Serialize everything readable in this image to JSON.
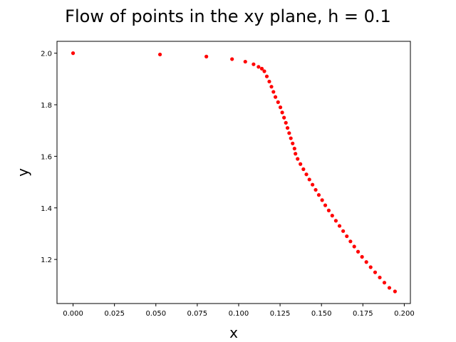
{
  "chart_data": {
    "type": "scatter",
    "title": "Flow of points in the xy plane, h = 0.1",
    "x_label": "x",
    "y_label": "y",
    "color": "#ff0000",
    "x": [
      0,
      0.0525,
      0.0805,
      0.096,
      0.104,
      0.109,
      0.112,
      0.114,
      0.1155,
      0.117,
      0.1185,
      0.1198,
      0.121,
      0.1222,
      0.1238,
      0.1252,
      0.1263,
      0.1274,
      0.1285,
      0.1295,
      0.1305,
      0.1315,
      0.1326,
      0.1337,
      0.1343,
      0.1356,
      0.1373,
      0.1391,
      0.1409,
      0.1427,
      0.1446,
      0.1465,
      0.1484,
      0.1504,
      0.1523,
      0.1544,
      0.1565,
      0.1587,
      0.1609,
      0.1631,
      0.1653,
      0.1675,
      0.1698,
      0.1721,
      0.1745,
      0.1771,
      0.1797,
      0.1824,
      0.1852,
      0.188,
      0.191,
      0.1944
    ],
    "values": [
      2.0,
      1.995,
      1.987,
      1.977,
      1.967,
      1.957,
      1.947,
      1.94,
      1.93,
      1.91,
      1.89,
      1.87,
      1.85,
      1.83,
      1.81,
      1.79,
      1.77,
      1.75,
      1.73,
      1.71,
      1.69,
      1.67,
      1.65,
      1.63,
      1.61,
      1.59,
      1.57,
      1.55,
      1.53,
      1.51,
      1.49,
      1.47,
      1.45,
      1.43,
      1.41,
      1.39,
      1.37,
      1.35,
      1.33,
      1.31,
      1.29,
      1.27,
      1.25,
      1.23,
      1.21,
      1.19,
      1.17,
      1.15,
      1.13,
      1.11,
      1.09,
      1.076
    ],
    "xlim": [
      -0.0097,
      0.2037
    ],
    "ylim": [
      1.029,
      2.046
    ],
    "xticks": [
      {
        "value": 0,
        "label": "0.000"
      },
      0.025,
      {
        "value": 0.05,
        "label": "0.050"
      },
      0.075,
      {
        "value": 0.1,
        "label": "0.100"
      },
      0.125,
      {
        "value": 0.15,
        "label": "0.150"
      },
      0.175,
      {
        "value": 0.2,
        "label": "0.200"
      }
    ],
    "yticks": [
      1.2,
      1.4,
      1.6,
      1.8,
      {
        "value": 2,
        "label": "2.0"
      }
    ]
  }
}
